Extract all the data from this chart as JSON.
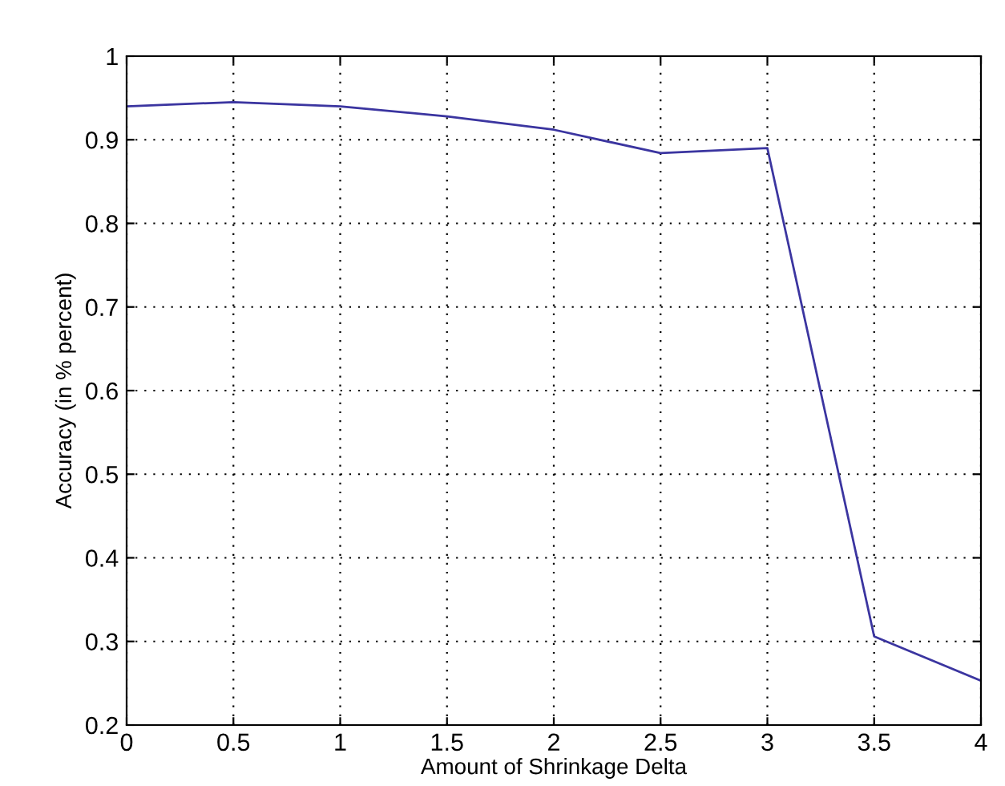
{
  "chart_data": {
    "type": "line",
    "xlabel": "Amount of Shrinkage Delta",
    "ylabel": "Accuracy (in % percent)",
    "x": [
      0,
      0.5,
      1,
      1.5,
      2,
      2.5,
      3,
      3.5,
      4
    ],
    "series": [
      {
        "color": "#3b35a0",
        "values": [
          0.94,
          0.945,
          0.94,
          0.928,
          0.912,
          0.884,
          0.89,
          0.306,
          0.253
        ]
      }
    ],
    "xlim": [
      0,
      4
    ],
    "xticks": [
      0,
      0.5,
      1,
      1.5,
      2,
      2.5,
      3,
      3.5,
      4
    ],
    "ylim": [
      0.2,
      1
    ],
    "yticks": [
      0.2,
      0.3,
      0.4,
      0.5,
      0.6,
      0.7,
      0.8,
      0.9,
      1
    ],
    "grid": true,
    "marker": "none",
    "line_style": "solid"
  }
}
